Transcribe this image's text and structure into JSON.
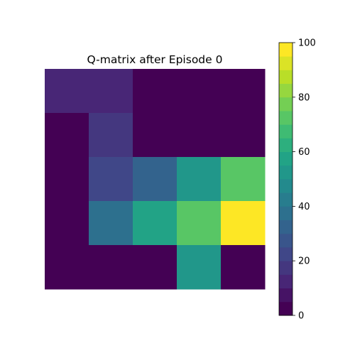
{
  "chart_data": {
    "type": "heatmap",
    "title": "Q-matrix after Episode 0",
    "rows": 5,
    "cols": 5,
    "values": [
      [
        10,
        13,
        0,
        0,
        0
      ],
      [
        0,
        17,
        0,
        0,
        0
      ],
      [
        0,
        23,
        33,
        50,
        70
      ],
      [
        0,
        37,
        57,
        73,
        100
      ],
      [
        0,
        0,
        0,
        53,
        0
      ]
    ],
    "colormap": "viridis",
    "colorbar_levels": 20,
    "vmin": 0,
    "vmax": 100,
    "colorbar_ticks": [
      "0",
      "20",
      "40",
      "60",
      "80",
      "100"
    ],
    "colorbar_tick_values": [
      0,
      20,
      40,
      60,
      80,
      100
    ],
    "show_axes": false,
    "grid": false
  }
}
